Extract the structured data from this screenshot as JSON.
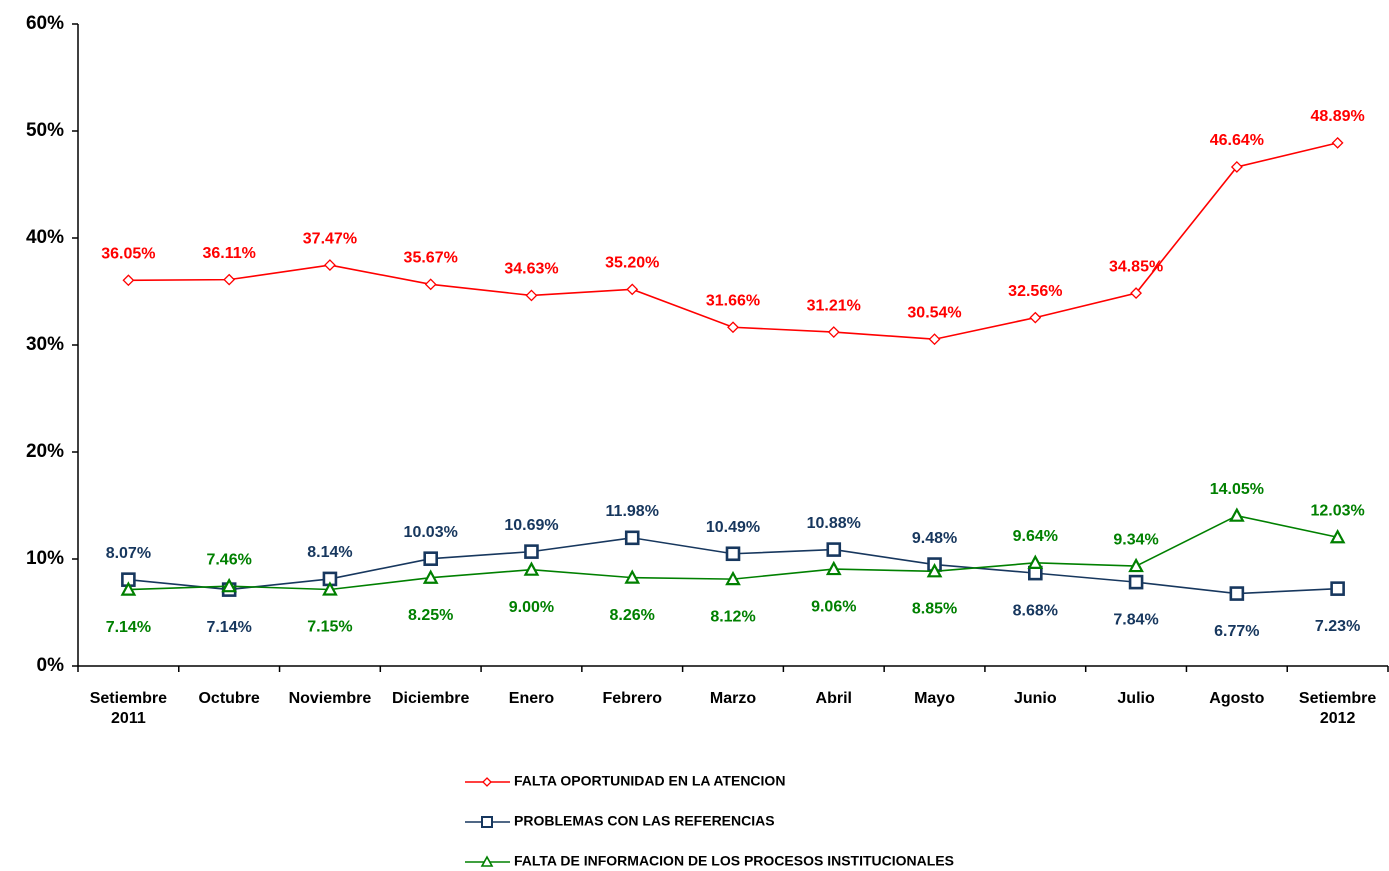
{
  "chart_data": {
    "type": "line",
    "categories": [
      "Setiembre 2011",
      "Octubre",
      "Noviembre",
      "Diciembre",
      "Enero",
      "Febrero",
      "Marzo",
      "Abril",
      "Mayo",
      "Junio",
      "Julio",
      "Agosto",
      "Setiembre 2012"
    ],
    "series": [
      {
        "name": "FALTA OPORTUNIDAD EN LA ATENCION",
        "color": "#ff0000",
        "marker": "diamond",
        "values": [
          36.05,
          36.11,
          37.47,
          35.67,
          34.63,
          35.2,
          31.66,
          31.21,
          30.54,
          32.56,
          34.85,
          46.64,
          48.89
        ],
        "value_labels": [
          "36.05%",
          "36.11%",
          "37.47%",
          "35.67%",
          "34.63%",
          "35.20%",
          "31.66%",
          "31.21%",
          "30.54%",
          "32.56%",
          "34.85%",
          "46.64%",
          "48.89%"
        ]
      },
      {
        "name": "PROBLEMAS CON LAS REFERENCIAS",
        "color": "#17375e",
        "marker": "square",
        "values": [
          8.07,
          7.14,
          8.14,
          10.03,
          10.69,
          11.98,
          10.49,
          10.88,
          9.48,
          8.68,
          7.84,
          6.77,
          7.23
        ],
        "value_labels": [
          "8.07%",
          "7.14%",
          "8.14%",
          "10.03%",
          "10.69%",
          "11.98%",
          "10.49%",
          "10.88%",
          "9.48%",
          "8.68%",
          "7.84%",
          "6.77%",
          "7.23%"
        ]
      },
      {
        "name": "FALTA DE INFORMACION DE LOS PROCESOS INSTITUCIONALES",
        "color": "#008000",
        "marker": "triangle",
        "values": [
          7.14,
          7.46,
          7.15,
          8.25,
          9.0,
          8.26,
          8.12,
          9.06,
          8.85,
          9.64,
          9.34,
          14.05,
          12.03
        ],
        "value_labels": [
          "7.14%",
          "7.46%",
          "7.15%",
          "8.25%",
          "9.00%",
          "8.26%",
          "8.12%",
          "9.06%",
          "8.85%",
          "9.64%",
          "9.34%",
          "14.05%",
          "12.03%"
        ]
      }
    ],
    "ylim": [
      0,
      60
    ],
    "yticks": [
      {
        "value": 0,
        "label": "0%"
      },
      {
        "value": 10,
        "label": "10%"
      },
      {
        "value": 20,
        "label": "20%"
      },
      {
        "value": 30,
        "label": "30%"
      },
      {
        "value": 40,
        "label": "40%"
      },
      {
        "value": 50,
        "label": "50%"
      },
      {
        "value": 60,
        "label": "60%"
      }
    ],
    "grid": false,
    "legend": "bottom"
  }
}
